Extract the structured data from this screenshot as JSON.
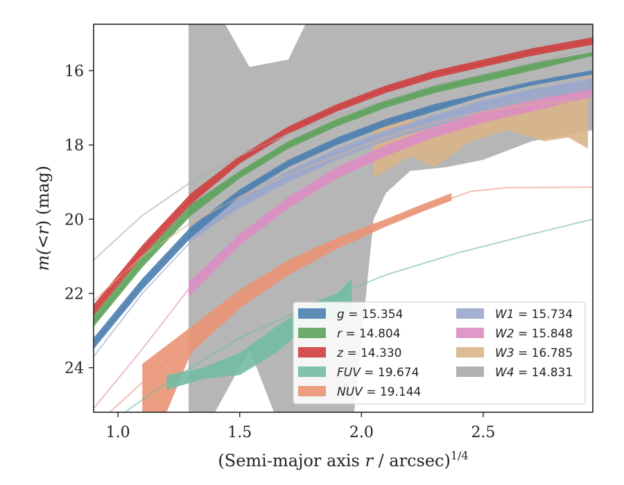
{
  "chart_data": {
    "type": "line",
    "title": "",
    "xlabel_prefix": "(Semi-major axis ",
    "xlabel_var": "r",
    "xlabel_mid": " / arcsec)",
    "xlabel_sup": "1/4",
    "ylabel_prefix": "m(",
    "ylabel_lt": "<",
    "ylabel_var": "r",
    "ylabel_suffix": ") (mag)",
    "xlim": [
      0.9,
      2.95
    ],
    "ylim": [
      25.2,
      14.75
    ],
    "y_inverted": true,
    "grid": false,
    "legend_position": "lower-right",
    "x_ticks": [
      {
        "v": 1.0,
        "label": "1.0"
      },
      {
        "v": 1.5,
        "label": "1.5"
      },
      {
        "v": 2.0,
        "label": "2.0"
      },
      {
        "v": 2.5,
        "label": "2.5"
      }
    ],
    "y_ticks": [
      {
        "v": 16,
        "label": "16"
      },
      {
        "v": 18,
        "label": "18"
      },
      {
        "v": 20,
        "label": "20"
      },
      {
        "v": 22,
        "label": "22"
      },
      {
        "v": 24,
        "label": "24"
      }
    ],
    "series": [
      {
        "key": "W4",
        "legend_var": "W4",
        "legend_val": " = 14.831",
        "color": "#a9a9a9",
        "band": [
          [
            1.29,
            14.75,
            26.5
          ],
          [
            1.44,
            14.75,
            24.7
          ],
          [
            1.54,
            15.9,
            23.5
          ],
          [
            1.7,
            15.7,
            26.2
          ],
          [
            1.77,
            14.75,
            26.5
          ],
          [
            1.95,
            14.75,
            26.5
          ],
          [
            2.05,
            14.75,
            20.0
          ],
          [
            2.1,
            14.75,
            19.3
          ],
          [
            2.2,
            14.75,
            18.7
          ],
          [
            2.35,
            14.75,
            18.6
          ],
          [
            2.5,
            14.75,
            18.4
          ],
          [
            2.7,
            14.75,
            17.9
          ],
          [
            2.95,
            14.75,
            17.6
          ]
        ],
        "model": [
          [
            0.9,
            21.1
          ],
          [
            1.1,
            19.9
          ],
          [
            1.3,
            19.0
          ],
          [
            1.5,
            18.3
          ],
          [
            1.7,
            17.7
          ],
          [
            1.9,
            17.2
          ],
          [
            2.1,
            16.8
          ],
          [
            2.3,
            16.4
          ],
          [
            2.5,
            16.1
          ],
          [
            2.7,
            15.8
          ],
          [
            2.95,
            15.4
          ]
        ]
      },
      {
        "key": "W3",
        "legend_var": "W3",
        "legend_val": " = 16.785",
        "color": "#d8b48a",
        "band": [
          [
            2.05,
            17.4,
            18.9
          ],
          [
            2.2,
            17.3,
            18.3
          ],
          [
            2.3,
            17.5,
            18.6
          ],
          [
            2.45,
            17.2,
            17.9
          ],
          [
            2.6,
            16.8,
            17.6
          ],
          [
            2.75,
            16.6,
            17.9
          ],
          [
            2.85,
            16.6,
            17.8
          ],
          [
            2.93,
            16.1,
            18.1
          ]
        ],
        "model": [
          [
            0.9,
            22.2
          ],
          [
            1.1,
            21.0
          ],
          [
            1.3,
            20.1
          ],
          [
            1.5,
            19.4
          ],
          [
            1.7,
            18.8
          ],
          [
            1.9,
            18.3
          ],
          [
            2.1,
            17.8
          ],
          [
            2.3,
            17.4
          ],
          [
            2.5,
            17.1
          ],
          [
            2.7,
            16.9
          ],
          [
            2.95,
            16.8
          ]
        ]
      },
      {
        "key": "W2",
        "legend_var": "W2",
        "legend_val": " = 15.848",
        "color": "#dc8ec2",
        "band": [
          [
            1.29,
            21.7,
            22.1
          ],
          [
            1.5,
            20.4,
            20.7
          ],
          [
            1.7,
            19.4,
            19.7
          ],
          [
            1.9,
            18.6,
            18.9
          ],
          [
            2.1,
            18.0,
            18.3
          ],
          [
            2.3,
            17.5,
            17.8
          ],
          [
            2.5,
            17.1,
            17.4
          ],
          [
            2.7,
            16.8,
            17.1
          ],
          [
            2.95,
            16.4,
            16.7
          ]
        ],
        "model": [
          [
            0.9,
            25.1
          ],
          [
            1.1,
            23.5
          ],
          [
            1.3,
            21.8
          ],
          [
            1.5,
            20.6
          ],
          [
            1.7,
            19.6
          ],
          [
            1.9,
            18.8
          ],
          [
            2.1,
            18.2
          ],
          [
            2.3,
            17.7
          ],
          [
            2.5,
            17.3
          ],
          [
            2.7,
            16.9
          ],
          [
            2.95,
            16.5
          ]
        ]
      },
      {
        "key": "W1",
        "legend_var": "W1",
        "legend_val": " = 15.734",
        "color": "#9aa7cc",
        "band": [
          [
            1.29,
            20.3,
            20.6
          ],
          [
            1.5,
            19.4,
            19.7
          ],
          [
            1.7,
            18.7,
            19.0
          ],
          [
            1.9,
            18.1,
            18.4
          ],
          [
            2.1,
            17.6,
            17.9
          ],
          [
            2.3,
            17.2,
            17.5
          ],
          [
            2.5,
            16.8,
            17.1
          ],
          [
            2.7,
            16.5,
            16.8
          ],
          [
            2.95,
            16.2,
            16.5
          ]
        ],
        "model": [
          [
            0.9,
            23.7
          ],
          [
            1.1,
            22.0
          ],
          [
            1.3,
            20.6
          ],
          [
            1.5,
            19.6
          ],
          [
            1.7,
            18.8
          ],
          [
            1.9,
            18.2
          ],
          [
            2.1,
            17.7
          ],
          [
            2.3,
            17.3
          ],
          [
            2.5,
            16.9
          ],
          [
            2.7,
            16.6
          ],
          [
            2.95,
            16.3
          ]
        ]
      },
      {
        "key": "NUV",
        "legend_var": "NUV",
        "legend_val": " = 19.144",
        "color": "#ea9374",
        "band": [
          [
            1.1,
            23.9,
            25.2
          ],
          [
            1.2,
            23.4,
            25.2
          ],
          [
            1.3,
            22.9,
            23.6
          ],
          [
            1.5,
            21.9,
            22.4
          ],
          [
            1.7,
            21.1,
            21.5
          ],
          [
            1.9,
            20.5,
            20.8
          ],
          [
            2.1,
            20.0,
            20.2
          ],
          [
            2.25,
            19.6,
            19.8
          ],
          [
            2.37,
            19.3,
            19.5
          ]
        ],
        "model": [
          [
            0.9,
            25.6
          ],
          [
            1.1,
            24.4
          ],
          [
            1.3,
            23.3
          ],
          [
            1.5,
            22.2
          ],
          [
            1.7,
            21.3
          ],
          [
            1.9,
            20.6
          ],
          [
            2.1,
            20.1
          ],
          [
            2.3,
            19.6
          ],
          [
            2.45,
            19.25
          ],
          [
            2.6,
            19.15
          ],
          [
            2.95,
            19.14
          ]
        ]
      },
      {
        "key": "FUV",
        "legend_var": "FUV",
        "legend_val": " = 19.674",
        "color": "#72bba2",
        "band": [
          [
            1.2,
            24.2,
            24.6
          ],
          [
            1.35,
            24.0,
            24.3
          ],
          [
            1.5,
            23.6,
            24.2
          ],
          [
            1.65,
            22.9,
            23.6
          ],
          [
            1.72,
            22.6,
            23.2
          ],
          [
            1.78,
            22.3,
            22.9
          ],
          [
            1.9,
            22.0,
            22.6
          ],
          [
            1.96,
            21.6,
            22.3
          ],
          [
            1.96,
            21.6,
            21.6
          ]
        ],
        "model": [
          [
            0.9,
            25.8
          ],
          [
            1.2,
            24.4
          ],
          [
            1.5,
            23.2
          ],
          [
            1.8,
            22.3
          ],
          [
            2.1,
            21.5
          ],
          [
            2.4,
            20.9
          ],
          [
            2.7,
            20.4
          ],
          [
            2.95,
            20.0
          ]
        ]
      },
      {
        "key": "g",
        "legend_var": "g",
        "legend_val": " = 15.354",
        "color": "#4c7fb0",
        "band": [
          [
            0.9,
            23.2,
            23.5
          ],
          [
            1.1,
            21.6,
            21.9
          ],
          [
            1.3,
            20.2,
            20.5
          ],
          [
            1.5,
            19.2,
            19.4
          ],
          [
            1.7,
            18.4,
            18.6
          ],
          [
            1.9,
            17.8,
            18.0
          ],
          [
            2.1,
            17.3,
            17.5
          ],
          [
            2.3,
            16.9,
            17.1
          ],
          [
            2.5,
            16.6,
            16.7
          ],
          [
            2.7,
            16.3,
            16.4
          ],
          [
            2.95,
            16.0,
            16.1
          ]
        ],
        "model": [
          [
            0.9,
            23.35
          ],
          [
            1.1,
            21.75
          ],
          [
            1.3,
            20.35
          ],
          [
            1.5,
            19.3
          ],
          [
            1.7,
            18.5
          ],
          [
            1.9,
            17.9
          ],
          [
            2.1,
            17.4
          ],
          [
            2.3,
            17.0
          ],
          [
            2.5,
            16.6
          ],
          [
            2.7,
            16.3
          ],
          [
            2.95,
            16.0
          ]
        ]
      },
      {
        "key": "r",
        "legend_var": "r",
        "legend_val": " = 14.804",
        "color": "#5ea35c",
        "band": [
          [
            0.9,
            22.6,
            22.9
          ],
          [
            1.1,
            21.0,
            21.3
          ],
          [
            1.3,
            19.6,
            19.9
          ],
          [
            1.5,
            18.7,
            18.9
          ],
          [
            1.7,
            17.9,
            18.1
          ],
          [
            1.9,
            17.3,
            17.5
          ],
          [
            2.1,
            16.8,
            17.0
          ],
          [
            2.3,
            16.4,
            16.6
          ],
          [
            2.5,
            16.1,
            16.3
          ],
          [
            2.7,
            15.8,
            16.0
          ],
          [
            2.95,
            15.5,
            15.6
          ]
        ],
        "model": [
          [
            0.9,
            22.8
          ],
          [
            1.1,
            21.15
          ],
          [
            1.3,
            19.75
          ],
          [
            1.5,
            18.8
          ],
          [
            1.7,
            18.0
          ],
          [
            1.9,
            17.4
          ],
          [
            2.1,
            16.9
          ],
          [
            2.3,
            16.5
          ],
          [
            2.5,
            16.2
          ],
          [
            2.7,
            15.9
          ],
          [
            2.95,
            15.55
          ]
        ]
      },
      {
        "key": "z",
        "legend_var": "z",
        "legend_val": " = 14.330",
        "color": "#cf3f3f",
        "band": [
          [
            0.9,
            22.3,
            22.6
          ],
          [
            1.1,
            20.7,
            21.0
          ],
          [
            1.3,
            19.3,
            19.6
          ],
          [
            1.5,
            18.3,
            18.5
          ],
          [
            1.7,
            17.5,
            17.7
          ],
          [
            1.9,
            16.9,
            17.1
          ],
          [
            2.1,
            16.4,
            16.6
          ],
          [
            2.3,
            16.0,
            16.2
          ],
          [
            2.5,
            15.7,
            15.9
          ],
          [
            2.7,
            15.4,
            15.6
          ],
          [
            2.95,
            15.1,
            15.3
          ]
        ],
        "model": [
          [
            0.9,
            22.45
          ],
          [
            1.1,
            20.85
          ],
          [
            1.3,
            19.45
          ],
          [
            1.5,
            18.4
          ],
          [
            1.7,
            17.6
          ],
          [
            1.9,
            17.0
          ],
          [
            2.1,
            16.5
          ],
          [
            2.3,
            16.1
          ],
          [
            2.5,
            15.8
          ],
          [
            2.7,
            15.5
          ],
          [
            2.95,
            15.2
          ]
        ]
      }
    ],
    "legend_columns": [
      [
        "g",
        "r",
        "z",
        "FUV",
        "NUV"
      ],
      [
        "W1",
        "W2",
        "W3",
        "W4"
      ]
    ]
  }
}
